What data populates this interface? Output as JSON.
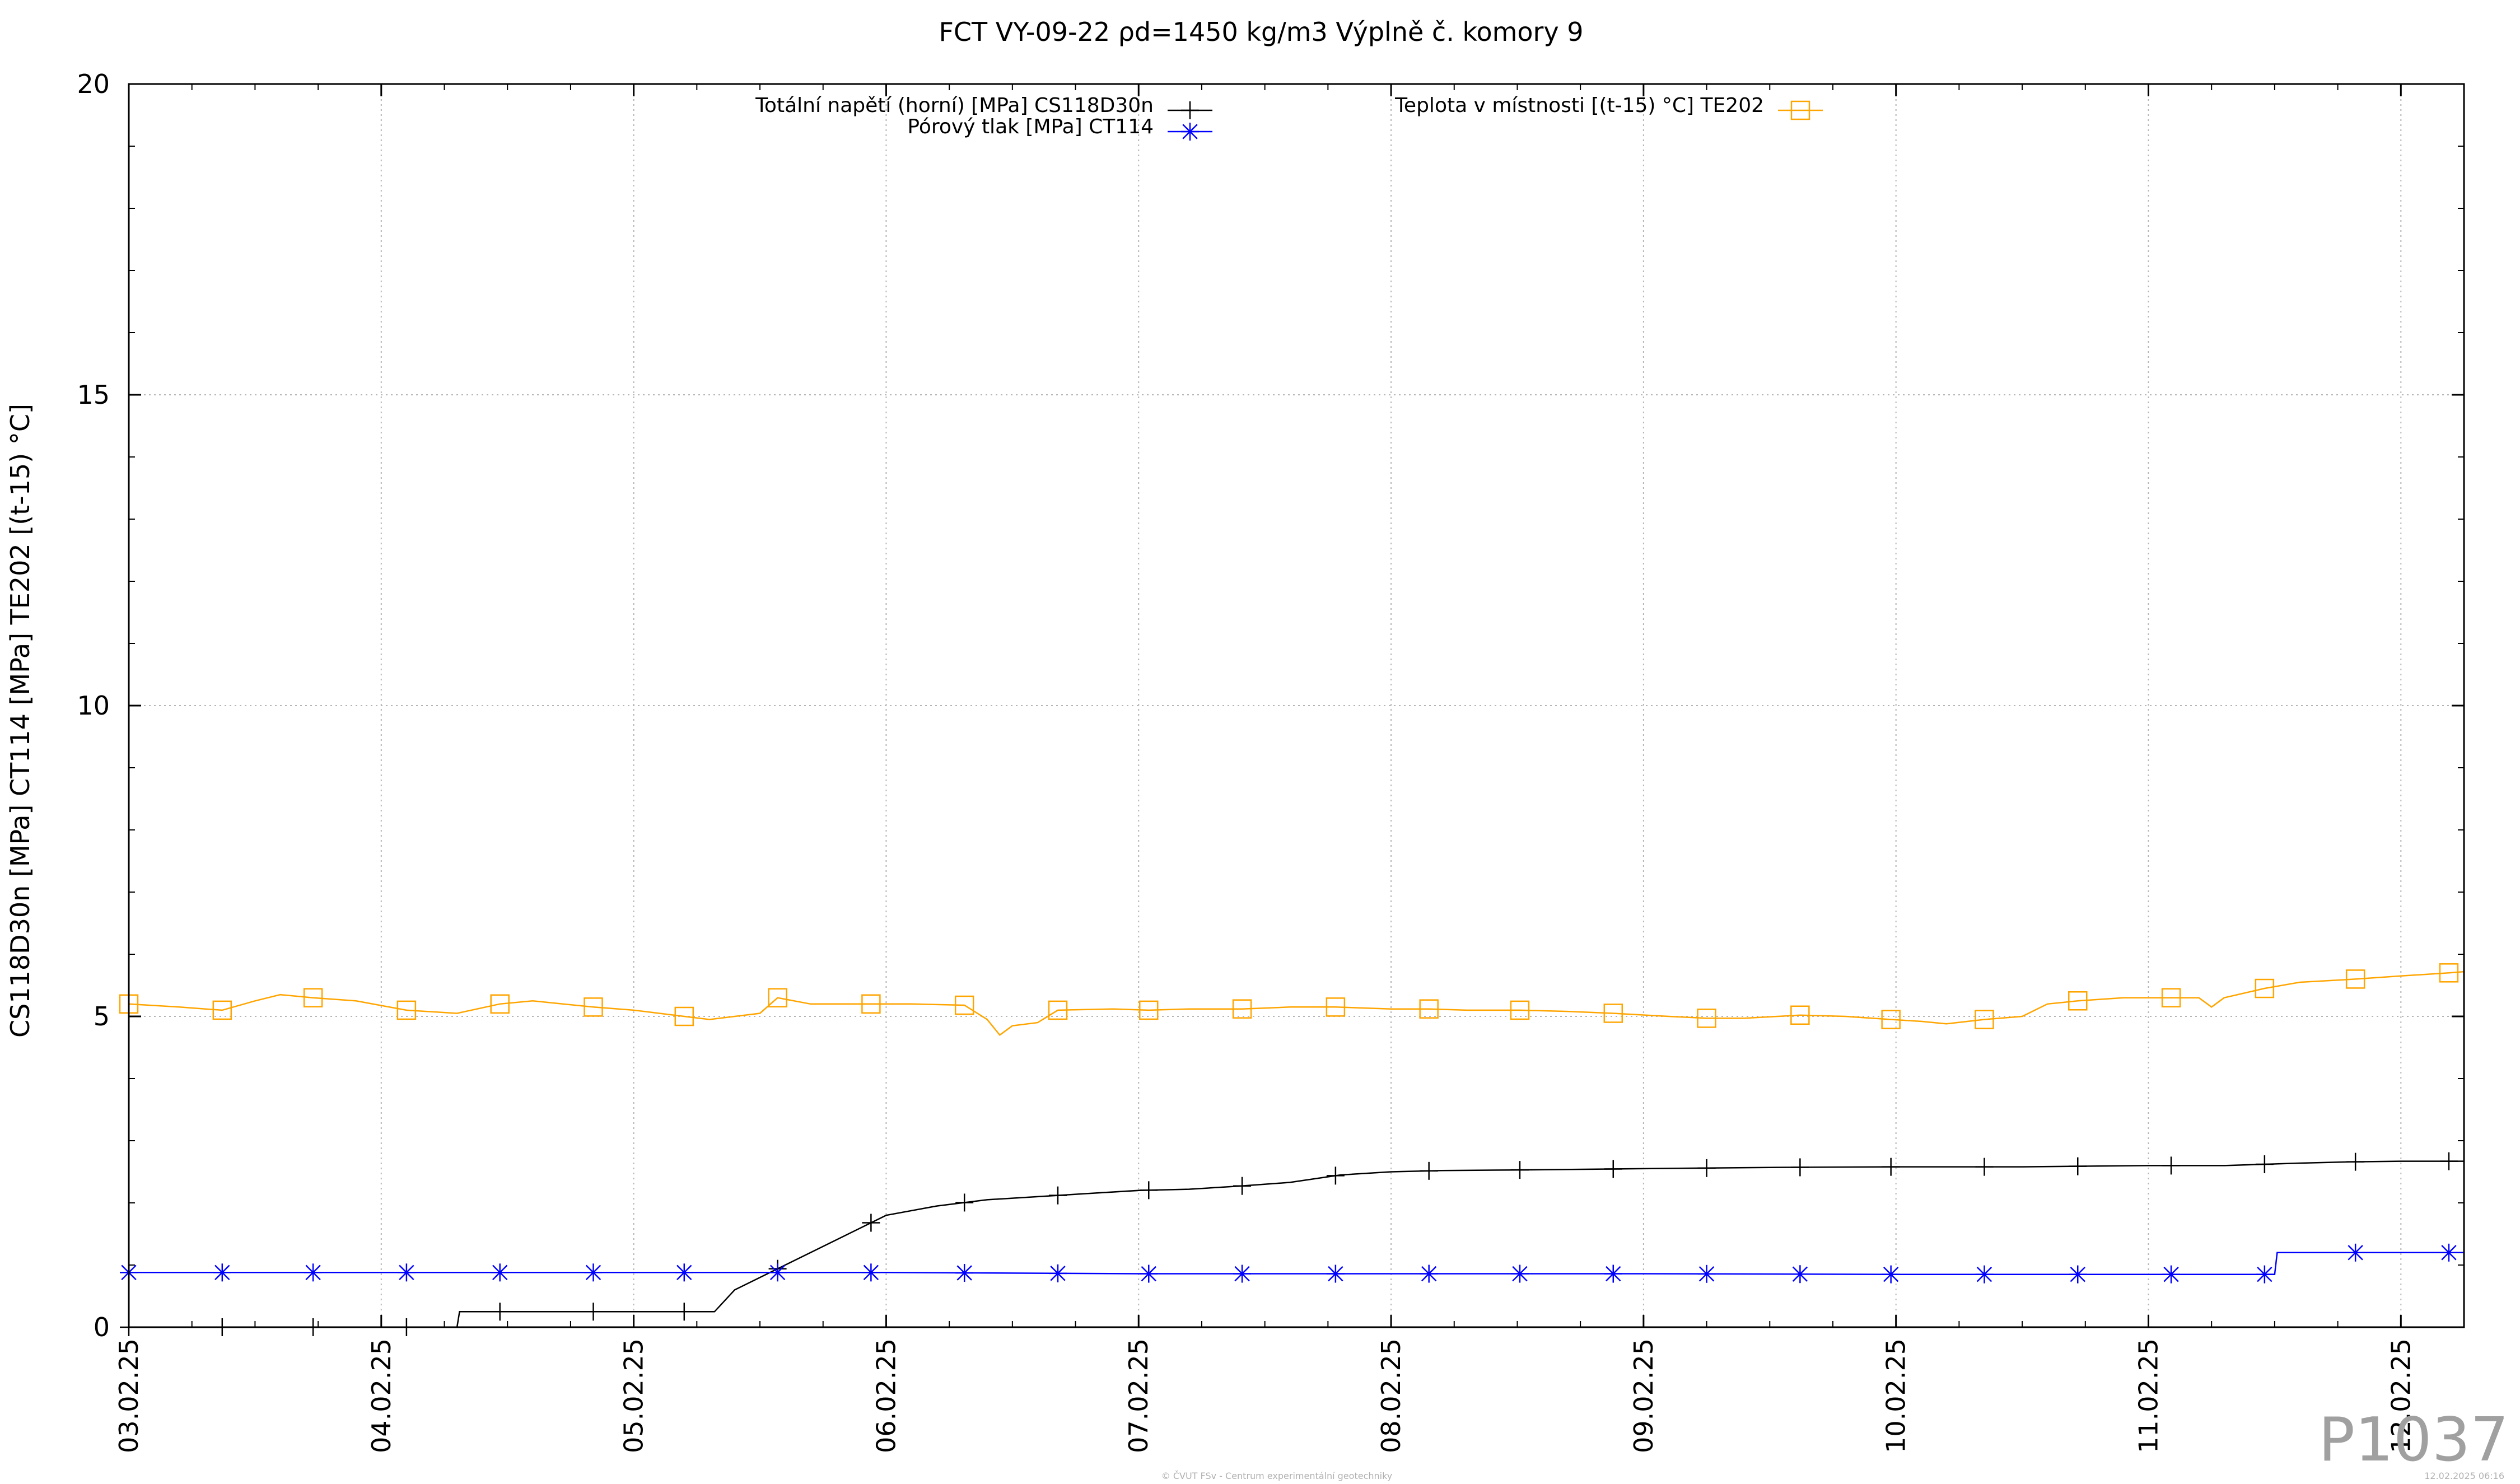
{
  "chart_data": {
    "type": "line",
    "title": "FCT VY-09-22 ρd=1450 kg/m3 Výplně č. komory 9",
    "ylabel": "CS118D30n [MPa] CT114 [MPa] TE202 [(t-15) °C]",
    "xlabel": "",
    "ylim": [
      0,
      20
    ],
    "xlim": [
      0,
      9.25
    ],
    "x_unit": "days from 03.02.25 00:00",
    "y_ticks": [
      "0",
      "5",
      "10",
      "15",
      "20"
    ],
    "x_ticks": [
      {
        "label": "03.02.25",
        "x": 0
      },
      {
        "label": "04.02.25",
        "x": 1
      },
      {
        "label": "05.02.25",
        "x": 2
      },
      {
        "label": "06.02.25",
        "x": 3
      },
      {
        "label": "07.02.25",
        "x": 4
      },
      {
        "label": "08.02.25",
        "x": 5
      },
      {
        "label": "09.02.25",
        "x": 6
      },
      {
        "label": "10.02.25",
        "x": 7
      },
      {
        "label": "11.02.25",
        "x": 8
      },
      {
        "label": "12.02.25",
        "x": 9
      }
    ],
    "grid": true,
    "series": [
      {
        "name": "Totální napětí (horní) [MPa] CS118D30n",
        "color": "#000000",
        "marker": "plus",
        "points": [
          [
            0,
            0.0
          ],
          [
            0.5,
            0.0
          ],
          [
            1.0,
            0.0
          ],
          [
            1.3,
            0.0
          ],
          [
            1.31,
            0.25
          ],
          [
            2.0,
            0.25
          ],
          [
            2.3,
            0.25
          ],
          [
            2.32,
            0.25
          ],
          [
            2.4,
            0.6
          ],
          [
            2.6,
            1.0
          ],
          [
            2.8,
            1.4
          ],
          [
            3.0,
            1.8
          ],
          [
            3.2,
            1.95
          ],
          [
            3.4,
            2.05
          ],
          [
            3.6,
            2.1
          ],
          [
            3.8,
            2.15
          ],
          [
            4.0,
            2.2
          ],
          [
            4.2,
            2.22
          ],
          [
            4.4,
            2.27
          ],
          [
            4.6,
            2.33
          ],
          [
            4.8,
            2.45
          ],
          [
            5.0,
            2.5
          ],
          [
            5.2,
            2.52
          ],
          [
            5.5,
            2.53
          ],
          [
            6.0,
            2.55
          ],
          [
            6.5,
            2.57
          ],
          [
            7.0,
            2.58
          ],
          [
            7.5,
            2.58
          ],
          [
            8.0,
            2.6
          ],
          [
            8.3,
            2.6
          ],
          [
            8.6,
            2.64
          ],
          [
            8.8,
            2.66
          ],
          [
            9.0,
            2.67
          ],
          [
            9.25,
            2.67
          ]
        ],
        "markers_at": [
          0.0,
          0.37,
          0.73,
          1.1,
          1.47,
          1.84,
          2.2,
          2.57,
          2.94,
          3.31,
          3.68,
          4.04,
          4.41,
          4.78,
          5.15,
          5.51,
          5.88,
          6.25,
          6.62,
          6.98,
          7.35,
          7.72,
          8.09,
          8.46,
          8.82,
          9.19
        ]
      },
      {
        "name": "Pórový tlak [MPa] CT114",
        "color": "#0000ff",
        "marker": "star",
        "points": [
          [
            0,
            0.88
          ],
          [
            1.0,
            0.88
          ],
          [
            2.0,
            0.88
          ],
          [
            3.0,
            0.88
          ],
          [
            4.0,
            0.86
          ],
          [
            5.0,
            0.86
          ],
          [
            6.0,
            0.86
          ],
          [
            7.0,
            0.85
          ],
          [
            8.0,
            0.85
          ],
          [
            8.5,
            0.85
          ],
          [
            8.51,
            1.2
          ],
          [
            9.25,
            1.2
          ]
        ],
        "markers_at": [
          0.0,
          0.37,
          0.73,
          1.1,
          1.47,
          1.84,
          2.2,
          2.57,
          2.94,
          3.31,
          3.68,
          4.04,
          4.41,
          4.78,
          5.15,
          5.51,
          5.88,
          6.25,
          6.62,
          6.98,
          7.35,
          7.72,
          8.09,
          8.46,
          8.82,
          9.19
        ]
      },
      {
        "name": "Teplota v místnosti [(t-15) °C] TE202",
        "color": "#ffa500",
        "marker": "square",
        "points": [
          [
            0,
            5.2
          ],
          [
            0.2,
            5.15
          ],
          [
            0.37,
            5.1
          ],
          [
            0.5,
            5.25
          ],
          [
            0.6,
            5.35
          ],
          [
            0.73,
            5.3
          ],
          [
            0.9,
            5.25
          ],
          [
            1.1,
            5.1
          ],
          [
            1.3,
            5.05
          ],
          [
            1.47,
            5.2
          ],
          [
            1.6,
            5.25
          ],
          [
            1.84,
            5.15
          ],
          [
            2.0,
            5.1
          ],
          [
            2.2,
            5.0
          ],
          [
            2.3,
            4.95
          ],
          [
            2.5,
            5.05
          ],
          [
            2.57,
            5.3
          ],
          [
            2.7,
            5.2
          ],
          [
            2.94,
            5.2
          ],
          [
            3.1,
            5.2
          ],
          [
            3.31,
            5.18
          ],
          [
            3.4,
            4.95
          ],
          [
            3.45,
            4.7
          ],
          [
            3.5,
            4.85
          ],
          [
            3.6,
            4.9
          ],
          [
            3.68,
            5.1
          ],
          [
            3.9,
            5.12
          ],
          [
            4.04,
            5.1
          ],
          [
            4.2,
            5.12
          ],
          [
            4.41,
            5.12
          ],
          [
            4.6,
            5.15
          ],
          [
            4.78,
            5.15
          ],
          [
            5.0,
            5.12
          ],
          [
            5.15,
            5.12
          ],
          [
            5.3,
            5.1
          ],
          [
            5.51,
            5.1
          ],
          [
            5.7,
            5.08
          ],
          [
            5.88,
            5.05
          ],
          [
            6.1,
            5.0
          ],
          [
            6.25,
            4.97
          ],
          [
            6.4,
            4.97
          ],
          [
            6.62,
            5.02
          ],
          [
            6.8,
            5.0
          ],
          [
            6.98,
            4.95
          ],
          [
            7.1,
            4.92
          ],
          [
            7.2,
            4.88
          ],
          [
            7.35,
            4.95
          ],
          [
            7.5,
            5.0
          ],
          [
            7.6,
            5.2
          ],
          [
            7.72,
            5.25
          ],
          [
            7.9,
            5.3
          ],
          [
            8.09,
            5.3
          ],
          [
            8.2,
            5.3
          ],
          [
            8.25,
            5.15
          ],
          [
            8.3,
            5.3
          ],
          [
            8.46,
            5.45
          ],
          [
            8.6,
            5.55
          ],
          [
            8.82,
            5.6
          ],
          [
            9.0,
            5.65
          ],
          [
            9.19,
            5.7
          ],
          [
            9.25,
            5.72
          ]
        ],
        "markers_at": [
          0.0,
          0.37,
          0.73,
          1.1,
          1.47,
          1.84,
          2.2,
          2.57,
          2.94,
          3.31,
          3.68,
          4.04,
          4.41,
          4.78,
          5.15,
          5.51,
          5.88,
          6.25,
          6.62,
          6.98,
          7.35,
          7.72,
          8.09,
          8.46,
          8.82,
          9.19
        ]
      }
    ],
    "legend_position": "top"
  },
  "watermark": "P1037",
  "footer_credit": "© ČVUT FSv - Centrum experimentální geotechniky",
  "footer_timestamp": "12.02.2025 06:16"
}
